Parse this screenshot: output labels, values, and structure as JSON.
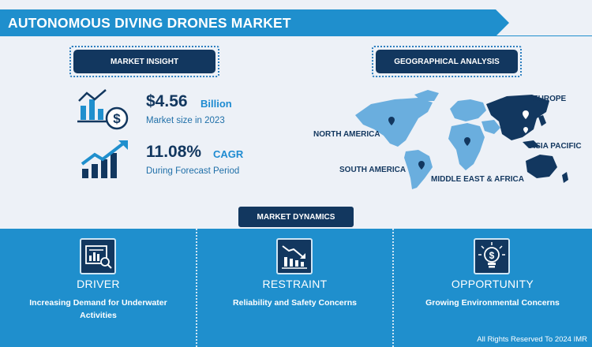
{
  "header": {
    "title": "AUTONOMOUS DIVING DRONES MARKET"
  },
  "insight": {
    "heading": "MARKET INSIGHT",
    "market_size": {
      "value": "$4.56",
      "unit": "Billion",
      "caption": "Market size in 2023",
      "icon": "bar-chart-dollar-icon"
    },
    "cagr": {
      "value": "11.08%",
      "unit": "CAGR",
      "caption": "During Forecast Period",
      "icon": "growth-arrow-icon"
    }
  },
  "geo": {
    "heading": "GEOGRAPHICAL ANALYSIS",
    "regions": [
      "NORTH AMERICA",
      "EUROPE",
      "ASIA PACIFIC",
      "SOUTH AMERICA",
      "MIDDLE EAST & AFRICA"
    ],
    "highlighted_region": "ASIA PACIFIC"
  },
  "dynamics": {
    "heading": "MARKET DYNAMICS",
    "columns": [
      {
        "title": "DRIVER",
        "text": "Increasing Demand for Underwater Activities",
        "icon": "analytics-report-icon"
      },
      {
        "title": "RESTRAINT",
        "text": "Reliability and Safety Concerns",
        "icon": "declining-chart-icon"
      },
      {
        "title": "OPPORTUNITY",
        "text": "Growing Environmental Concerns",
        "icon": "dollar-bulb-icon"
      }
    ]
  },
  "footer": {
    "text": "All Rights Reserved To 2024 IMR"
  },
  "colors": {
    "navy": "#12375f",
    "blue": "#1f8fcd",
    "accent": "#1e8bd1",
    "background": "#edf1f7"
  }
}
